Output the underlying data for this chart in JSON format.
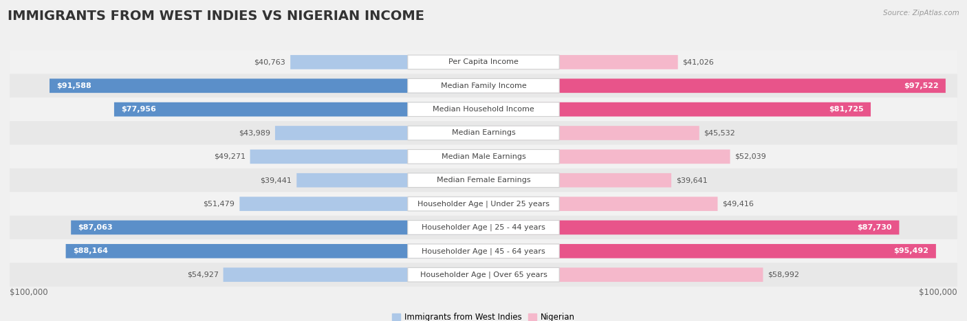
{
  "title": "IMMIGRANTS FROM WEST INDIES VS NIGERIAN INCOME",
  "source": "Source: ZipAtlas.com",
  "categories": [
    "Per Capita Income",
    "Median Family Income",
    "Median Household Income",
    "Median Earnings",
    "Median Male Earnings",
    "Median Female Earnings",
    "Householder Age | Under 25 years",
    "Householder Age | 25 - 44 years",
    "Householder Age | 45 - 64 years",
    "Householder Age | Over 65 years"
  ],
  "west_indies_values": [
    40763,
    91588,
    77956,
    43989,
    49271,
    39441,
    51479,
    87063,
    88164,
    54927
  ],
  "nigerian_values": [
    41026,
    97522,
    81725,
    45532,
    52039,
    39641,
    49416,
    87730,
    95492,
    58992
  ],
  "west_indies_labels": [
    "$40,763",
    "$91,588",
    "$77,956",
    "$43,989",
    "$49,271",
    "$39,441",
    "$51,479",
    "$87,063",
    "$88,164",
    "$54,927"
  ],
  "nigerian_labels": [
    "$41,026",
    "$97,522",
    "$81,725",
    "$45,532",
    "$52,039",
    "$39,641",
    "$49,416",
    "$87,730",
    "$95,492",
    "$58,992"
  ],
  "max_value": 100000,
  "wi_color_light": "#adc8e8",
  "wi_color_dark": "#5b8fc9",
  "ng_color_light": "#f5b8cb",
  "ng_color_dark": "#e8548a",
  "row_colors": [
    "#f2f2f2",
    "#e8e8e8"
  ],
  "label_thresh": 65000,
  "xlabel_left": "$100,000",
  "xlabel_right": "$100,000",
  "legend_wi": "Immigrants from West Indies",
  "legend_ng": "Nigerian",
  "title_fontsize": 14,
  "label_fontsize": 8,
  "cat_fontsize": 8,
  "axis_fontsize": 8.5
}
